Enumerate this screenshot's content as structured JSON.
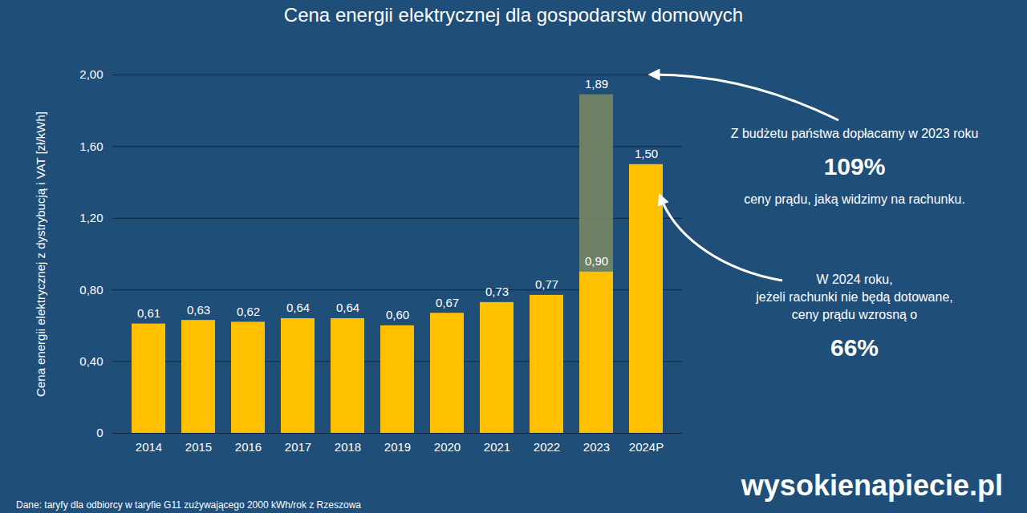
{
  "chart_data": {
    "type": "bar",
    "title": "Cena energii elektrycznej dla gospodarstw domowych",
    "y_label": "Cena energii elektrycznej z dystrybucją i VAT [zł/kWh]",
    "categories": [
      "2014",
      "2015",
      "2016",
      "2017",
      "2018",
      "2019",
      "2020",
      "2021",
      "2022",
      "2023",
      "2024P"
    ],
    "series": [
      {
        "color": "#ffc000",
        "values": [
          0.61,
          0.63,
          0.62,
          0.64,
          0.64,
          0.6,
          0.67,
          0.73,
          0.77,
          0.9,
          1.5
        ],
        "value_labels": [
          "0,61",
          "0,63",
          "0,62",
          "0,64",
          "0,64",
          "0,60",
          "0,67",
          "0,73",
          "0,77",
          "0,90",
          "1,50"
        ]
      },
      {
        "color": "#7d8b63",
        "values": [
          null,
          null,
          null,
          null,
          null,
          null,
          null,
          null,
          null,
          1.89,
          null
        ],
        "value_labels": [
          null,
          null,
          null,
          null,
          null,
          null,
          null,
          null,
          null,
          "1,89",
          null
        ]
      }
    ],
    "stacked": false,
    "data_labels": true,
    "grid": true,
    "ylim": [
      0,
      2.0
    ],
    "yticks": [
      0,
      {
        "value": 0.4,
        "label": "0,40"
      },
      {
        "value": 0.8,
        "label": "0,80"
      },
      {
        "value": 1.2,
        "label": "1,20"
      },
      {
        "value": 1.6,
        "label": "1,60"
      },
      {
        "value": 2.0,
        "label": "2,00"
      }
    ],
    "annotations": [
      {
        "lines": [
          "Z budżetu państwa dopłacamy w 2023 roku",
          "109%",
          "ceny prądu, jaką widzimy na rachunku."
        ]
      },
      {
        "lines": [
          "W 2024 roku,",
          "jeżeli rachunki nie będą dotowane,",
          "ceny prądu wzrosną o",
          "66%"
        ]
      }
    ],
    "source": "Dane: taryfy dla odbiorcy w taryfie G11 zużywającego 2000 kWh/rok z Rzeszowa",
    "logo": "wysokienapiecie.pl"
  }
}
